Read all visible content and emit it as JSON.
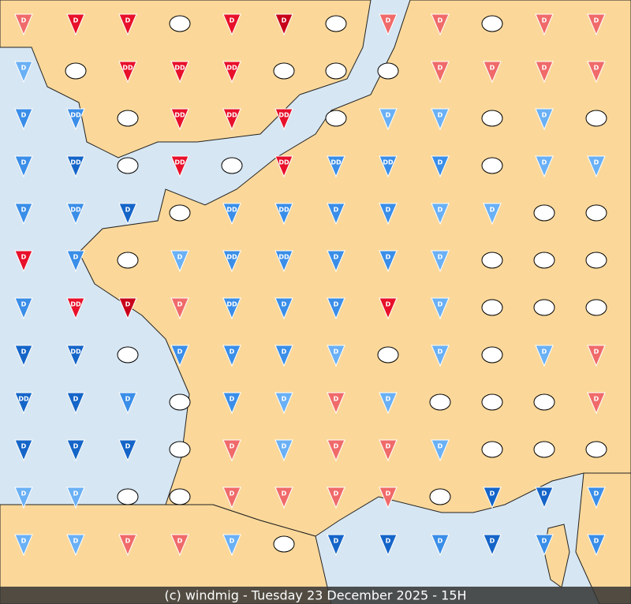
{
  "caption": "(c) windmig - Tuesday 23 December 2025 - 15H",
  "markers": [
    [
      {
        "label": "D",
        "color": "#f06a6a"
      },
      {
        "label": "D",
        "color": "#e8102a"
      },
      {
        "label": "D",
        "color": "#e8102a"
      },
      null,
      {
        "label": "D",
        "color": "#e8102a"
      },
      {
        "label": "D",
        "color": "#c8001a"
      },
      null,
      {
        "label": "D",
        "color": "#f06a6a"
      },
      {
        "label": "D",
        "color": "#f06a6a"
      },
      null,
      {
        "label": "D",
        "color": "#f06a6a"
      },
      {
        "label": "D",
        "color": "#f06a6a"
      }
    ],
    [
      {
        "label": "D",
        "color": "#6ab0f5"
      },
      null,
      {
        "label": "DD",
        "color": "#e8102a"
      },
      {
        "label": "DD",
        "color": "#e8102a"
      },
      {
        "label": "DD",
        "color": "#e8102a"
      },
      null,
      null,
      null,
      {
        "label": "D",
        "color": "#f06a6a"
      },
      {
        "label": "D",
        "color": "#f06a6a"
      },
      {
        "label": "D",
        "color": "#f06a6a"
      },
      {
        "label": "D",
        "color": "#f06a6a"
      }
    ],
    [
      {
        "label": "D",
        "color": "#3a8ee8"
      },
      {
        "label": "DD",
        "color": "#3a8ee8"
      },
      null,
      {
        "label": "DD",
        "color": "#e8102a"
      },
      {
        "label": "DD",
        "color": "#e8102a"
      },
      {
        "label": "DD",
        "color": "#e8102a"
      },
      null,
      {
        "label": "D",
        "color": "#6ab0f5"
      },
      {
        "label": "D",
        "color": "#6ab0f5"
      },
      null,
      {
        "label": "D",
        "color": "#6ab0f5"
      },
      null
    ],
    [
      {
        "label": "D",
        "color": "#3a8ee8"
      },
      {
        "label": "DD",
        "color": "#1565c8"
      },
      null,
      {
        "label": "DD",
        "color": "#e8102a"
      },
      null,
      {
        "label": "DD",
        "color": "#e8102a"
      },
      {
        "label": "DD",
        "color": "#3a8ee8"
      },
      {
        "label": "DD",
        "color": "#3a8ee8"
      },
      {
        "label": "D",
        "color": "#3a8ee8"
      },
      null,
      {
        "label": "D",
        "color": "#6ab0f5"
      },
      {
        "label": "D",
        "color": "#6ab0f5"
      }
    ],
    [
      {
        "label": "D",
        "color": "#3a8ee8"
      },
      {
        "label": "DD",
        "color": "#3a8ee8"
      },
      {
        "label": "D",
        "color": "#1565c8"
      },
      null,
      {
        "label": "DD",
        "color": "#3a8ee8"
      },
      {
        "label": "DD",
        "color": "#3a8ee8"
      },
      {
        "label": "D",
        "color": "#3a8ee8"
      },
      {
        "label": "D",
        "color": "#3a8ee8"
      },
      {
        "label": "D",
        "color": "#6ab0f5"
      },
      {
        "label": "D",
        "color": "#6ab0f5"
      },
      null,
      null
    ],
    [
      {
        "label": "D",
        "color": "#e8102a"
      },
      {
        "label": "D",
        "color": "#3a8ee8"
      },
      null,
      {
        "label": "D",
        "color": "#6ab0f5"
      },
      {
        "label": "DD",
        "color": "#3a8ee8"
      },
      {
        "label": "DD",
        "color": "#3a8ee8"
      },
      {
        "label": "D",
        "color": "#3a8ee8"
      },
      {
        "label": "D",
        "color": "#3a8ee8"
      },
      {
        "label": "D",
        "color": "#6ab0f5"
      },
      null,
      null,
      null
    ],
    [
      {
        "label": "D",
        "color": "#3a8ee8"
      },
      {
        "label": "DD",
        "color": "#e8102a"
      },
      {
        "label": "D",
        "color": "#c8001a"
      },
      {
        "label": "D",
        "color": "#f06a6a"
      },
      {
        "label": "DD",
        "color": "#3a8ee8"
      },
      {
        "label": "D",
        "color": "#3a8ee8"
      },
      {
        "label": "D",
        "color": "#3a8ee8"
      },
      {
        "label": "D",
        "color": "#e8102a"
      },
      {
        "label": "D",
        "color": "#6ab0f5"
      },
      null,
      null,
      null
    ],
    [
      {
        "label": "D",
        "color": "#1565c8"
      },
      {
        "label": "DD",
        "color": "#1565c8"
      },
      null,
      {
        "label": "D",
        "color": "#3a8ee8"
      },
      {
        "label": "D",
        "color": "#3a8ee8"
      },
      {
        "label": "D",
        "color": "#3a8ee8"
      },
      {
        "label": "D",
        "color": "#6ab0f5"
      },
      null,
      {
        "label": "D",
        "color": "#6ab0f5"
      },
      null,
      {
        "label": "D",
        "color": "#6ab0f5"
      },
      {
        "label": "D",
        "color": "#f06a6a"
      }
    ],
    [
      {
        "label": "DD",
        "color": "#1565c8"
      },
      {
        "label": "D",
        "color": "#1565c8"
      },
      {
        "label": "D",
        "color": "#3a8ee8"
      },
      null,
      {
        "label": "D",
        "color": "#3a8ee8"
      },
      {
        "label": "D",
        "color": "#6ab0f5"
      },
      {
        "label": "D",
        "color": "#f06a6a"
      },
      {
        "label": "D",
        "color": "#6ab0f5"
      },
      null,
      null,
      null,
      {
        "label": "D",
        "color": "#f06a6a"
      }
    ],
    [
      {
        "label": "D",
        "color": "#1565c8"
      },
      {
        "label": "D",
        "color": "#1565c8"
      },
      {
        "label": "D",
        "color": "#1565c8"
      },
      null,
      {
        "label": "D",
        "color": "#f06a6a"
      },
      {
        "label": "D",
        "color": "#6ab0f5"
      },
      {
        "label": "D",
        "color": "#f06a6a"
      },
      {
        "label": "D",
        "color": "#f06a6a"
      },
      {
        "label": "D",
        "color": "#6ab0f5"
      },
      null,
      null,
      null
    ],
    [
      {
        "label": "D",
        "color": "#6ab0f5"
      },
      {
        "label": "D",
        "color": "#6ab0f5"
      },
      null,
      null,
      {
        "label": "D",
        "color": "#f06a6a"
      },
      {
        "label": "D",
        "color": "#f06a6a"
      },
      {
        "label": "D",
        "color": "#f06a6a"
      },
      {
        "label": "D",
        "color": "#f06a6a"
      },
      null,
      {
        "label": "D",
        "color": "#1565c8"
      },
      {
        "label": "D",
        "color": "#1565c8"
      },
      {
        "label": "D",
        "color": "#3a8ee8"
      }
    ],
    [
      {
        "label": "D",
        "color": "#6ab0f5"
      },
      {
        "label": "D",
        "color": "#6ab0f5"
      },
      {
        "label": "D",
        "color": "#f06a6a"
      },
      {
        "label": "D",
        "color": "#f06a6a"
      },
      {
        "label": "D",
        "color": "#6ab0f5"
      },
      null,
      {
        "label": "D",
        "color": "#1565c8"
      },
      {
        "label": "D",
        "color": "#1565c8"
      },
      {
        "label": "D",
        "color": "#3a8ee8"
      },
      {
        "label": "D",
        "color": "#1565c8"
      },
      {
        "label": "D",
        "color": "#3a8ee8"
      },
      {
        "label": "D",
        "color": "#3a8ee8"
      }
    ]
  ]
}
